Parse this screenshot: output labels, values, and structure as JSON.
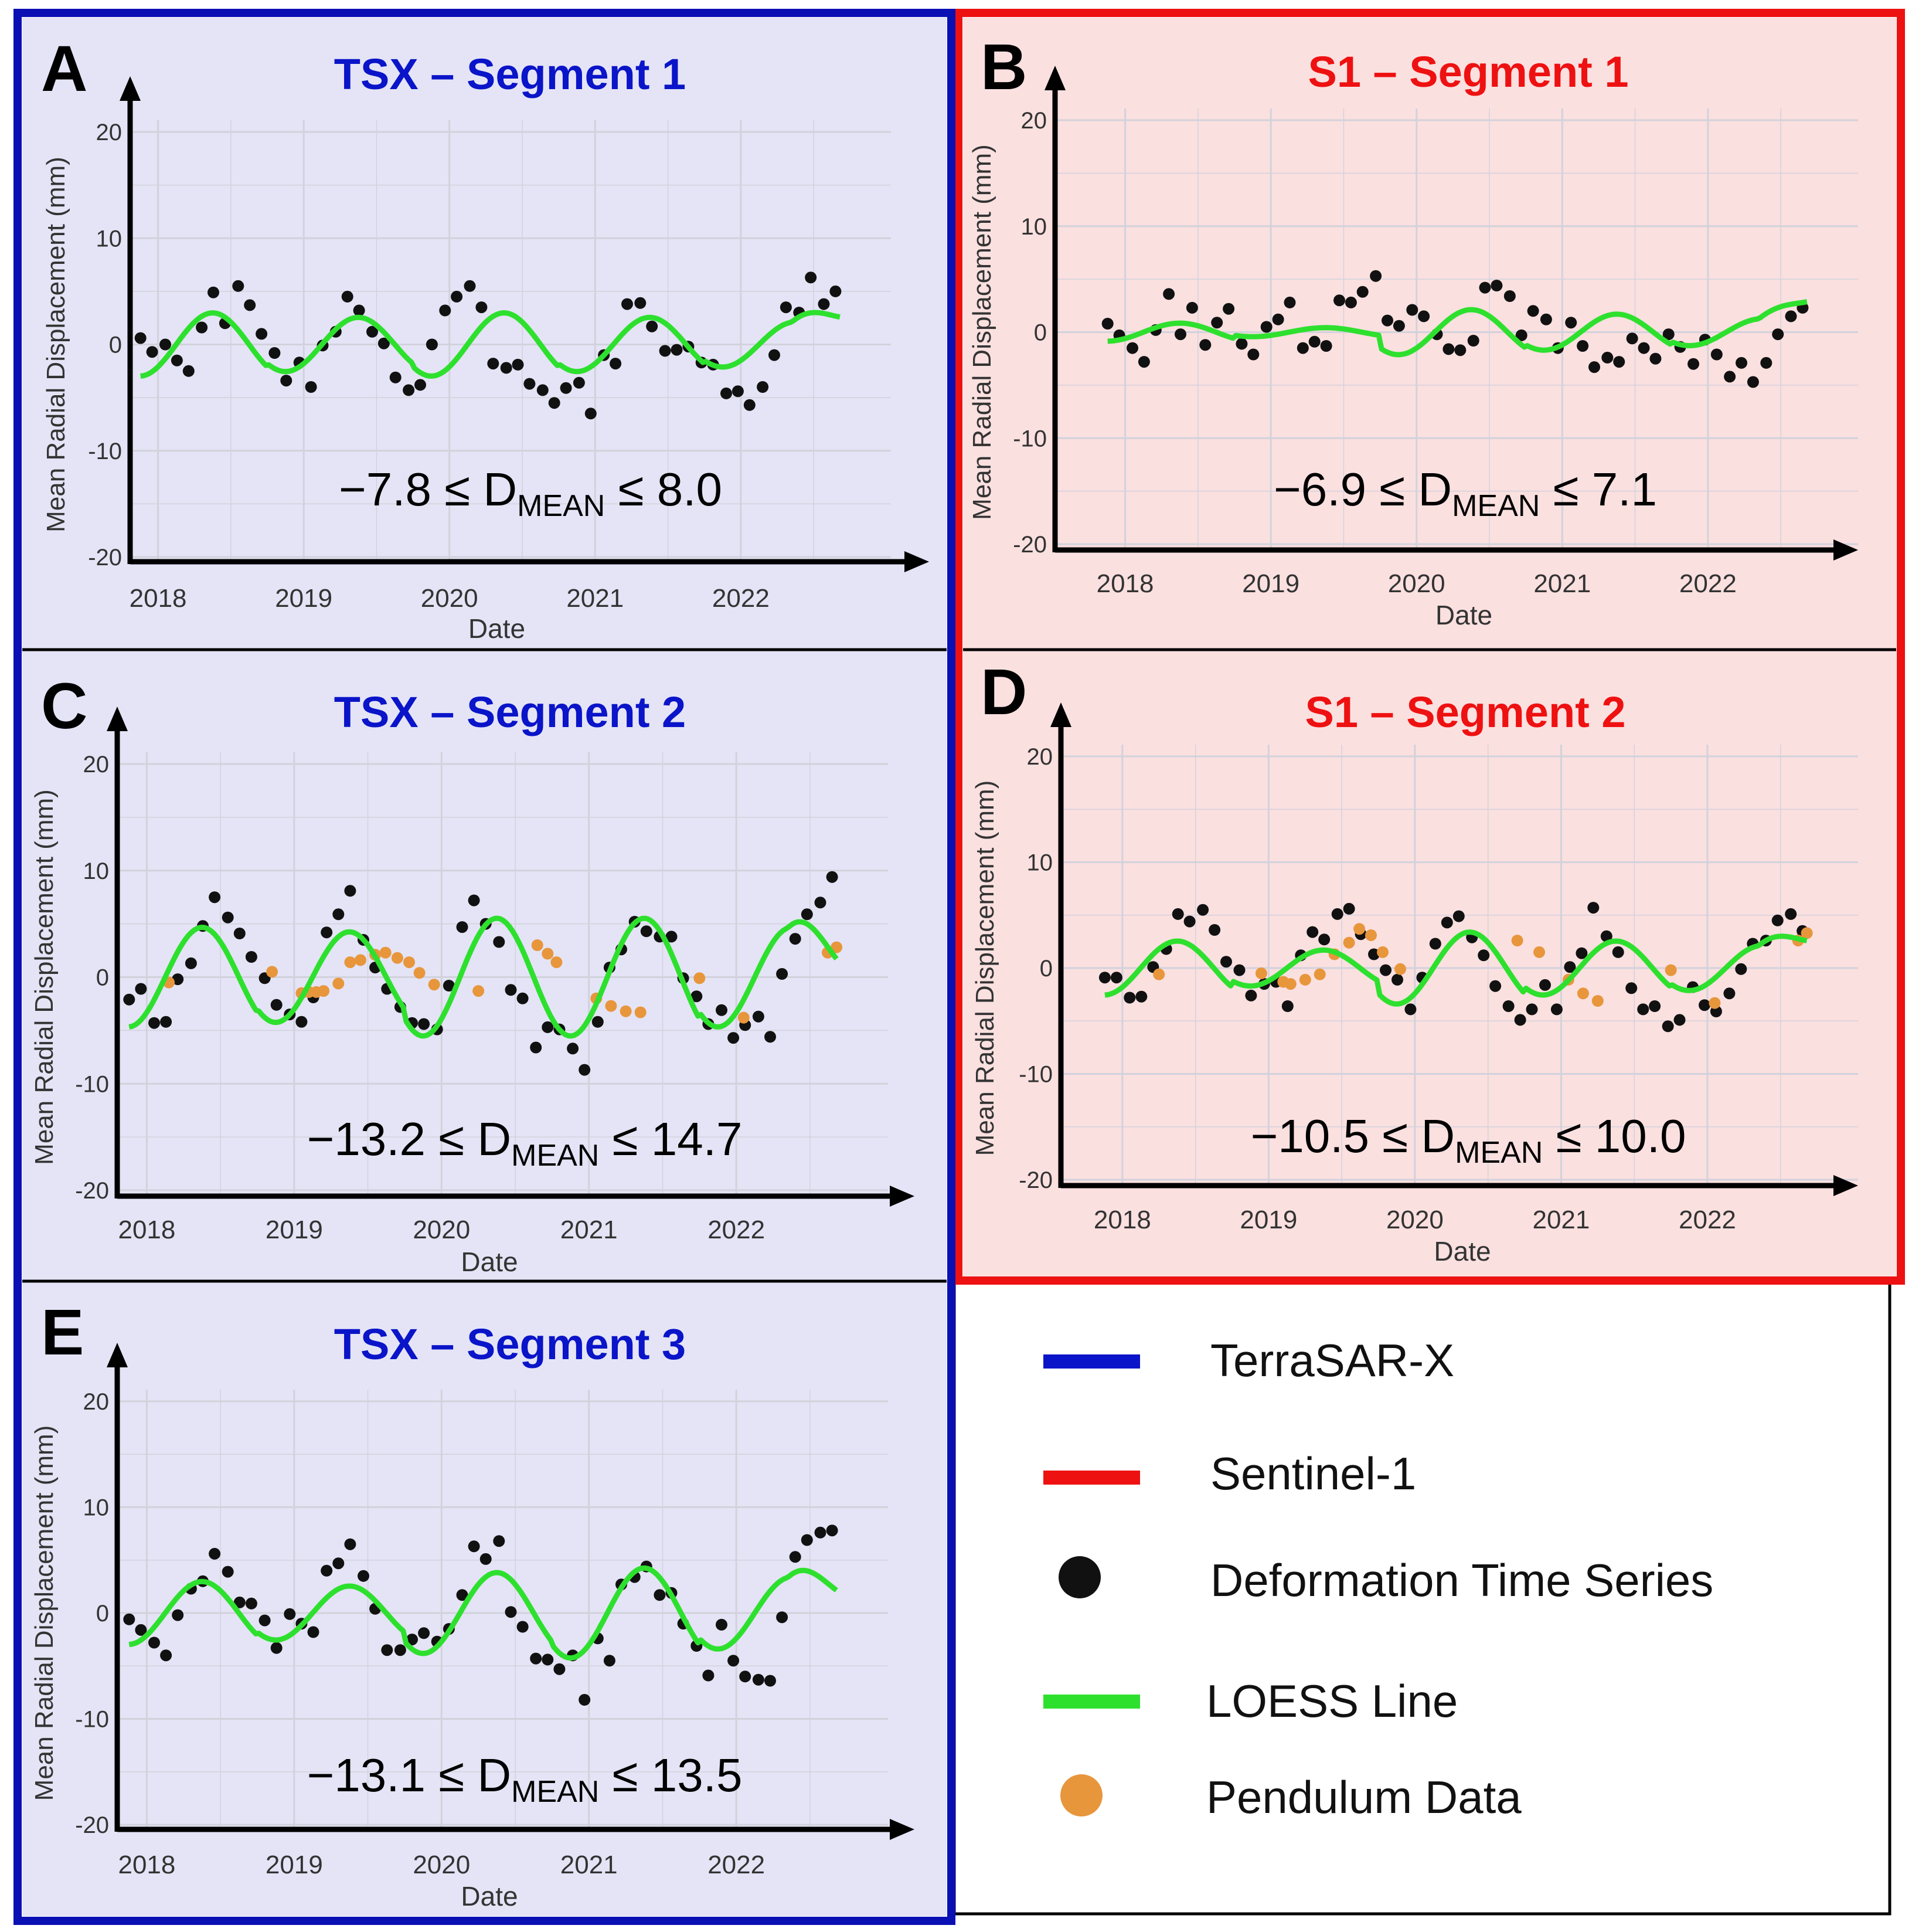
{
  "colors": {
    "tsx_border": "#0a10b4",
    "s1_border": "#ee1111",
    "tsx_bg": "#e4e4f6",
    "s1_bg": "#fbe0e0",
    "tsx_title": "#0a14c8",
    "s1_title": "#ee1111",
    "deformation": "#111111",
    "loess": "#2ee02e",
    "pendulum": "#e8963c",
    "grid": "#d2d2dc"
  },
  "legend": {
    "items": [
      {
        "label": "TerraSAR-X",
        "icon": "blue-line-icon"
      },
      {
        "label": "Sentinel-1",
        "icon": "red-line-icon"
      },
      {
        "label": "Deformation Time Series",
        "icon": "black-dot-icon"
      },
      {
        "label": "LOESS Line",
        "icon": "green-line-icon"
      },
      {
        "label": "Pendulum Data",
        "icon": "orange-dot-icon"
      }
    ]
  },
  "chart_data": [
    {
      "panel_letter": "A",
      "type": "scatter",
      "title": "TSX – Segment 1",
      "xlabel": "Date",
      "ylabel": "Mean Radial Displacement (mm)",
      "xlim": [
        2017.7,
        2022.95
      ],
      "ylim": [
        -20,
        20
      ],
      "x_ticks": [
        "2018",
        "2019",
        "2020",
        "2021",
        "2022"
      ],
      "y_ticks": [
        "20",
        "10",
        "0",
        "-10",
        "-20"
      ],
      "annotation": {
        "pre": "−7.8 ≤ D",
        "sub": "MEAN",
        "post": "≤ 8.0"
      },
      "loess_amplitudes": [
        3.5,
        3,
        3.5,
        3,
        2.5,
        3
      ],
      "series_deformation": {
        "x": [
          2017.88,
          2017.96,
          2018.05,
          2018.13,
          2018.21,
          2018.3,
          2018.38,
          2018.46,
          2018.55,
          2018.63,
          2018.71,
          2018.8,
          2018.88,
          2018.97,
          2019.05,
          2019.13,
          2019.22,
          2019.3,
          2019.38,
          2019.47,
          2019.55,
          2019.63,
          2019.72,
          2019.8,
          2019.88,
          2019.97,
          2020.05,
          2020.14,
          2020.22,
          2020.3,
          2020.39,
          2020.47,
          2020.55,
          2020.64,
          2020.72,
          2020.8,
          2020.89,
          2020.97,
          2021.06,
          2021.14,
          2021.22,
          2021.31,
          2021.39,
          2021.48,
          2021.56,
          2021.64,
          2021.73,
          2021.81,
          2021.9,
          2021.98,
          2022.06,
          2022.15,
          2022.23,
          2022.31,
          2022.4,
          2022.48,
          2022.57,
          2022.65
        ],
        "y": [
          0.6,
          -0.7,
          0,
          -1.5,
          -2.5,
          1.6,
          4.9,
          2,
          5.5,
          3.7,
          1,
          -0.8,
          -3.4,
          -1.7,
          -4,
          -0.1,
          1.2,
          4.5,
          3.2,
          1.2,
          0.1,
          -3.1,
          -4.3,
          -3.8,
          0,
          3.2,
          4.5,
          5.5,
          3.5,
          -1.8,
          -2.2,
          -1.9,
          -3.7,
          -4.3,
          -5.5,
          -4.1,
          -3.6,
          -6.5,
          -1,
          -1.8,
          3.8,
          3.9,
          1.7,
          -0.6,
          -0.5,
          -0.2,
          -1.7,
          -1.9,
          -4.6,
          -4.4,
          -5.7,
          -4,
          -1,
          3.5,
          3,
          6.3,
          3.8,
          5
        ]
      },
      "series_pendulum": null
    },
    {
      "panel_letter": "B",
      "type": "scatter",
      "title": "S1 – Segment 1",
      "xlabel": "Date",
      "ylabel": "Mean Radial Displacement (mm)",
      "xlim": [
        2017.7,
        2022.95
      ],
      "ylim": [
        -20,
        20
      ],
      "x_ticks": [
        "2018",
        "2019",
        "2020",
        "2021",
        "2022"
      ],
      "y_ticks": [
        "20",
        "10",
        "0",
        "-10",
        "-20"
      ],
      "annotation": {
        "pre": "−6.9 ≤ D",
        "sub": "MEAN",
        "post": "≤ 7.1"
      },
      "loess_amplitudes": [
        1,
        0.5,
        2.5,
        2,
        1.5,
        2
      ],
      "series_deformation": {
        "x": [
          2017.88,
          2017.96,
          2018.05,
          2018.13,
          2018.21,
          2018.3,
          2018.38,
          2018.46,
          2018.55,
          2018.63,
          2018.71,
          2018.8,
          2018.88,
          2018.97,
          2019.05,
          2019.13,
          2019.22,
          2019.3,
          2019.38,
          2019.47,
          2019.55,
          2019.63,
          2019.72,
          2019.8,
          2019.88,
          2019.97,
          2020.05,
          2020.14,
          2020.22,
          2020.3,
          2020.39,
          2020.47,
          2020.55,
          2020.64,
          2020.72,
          2020.8,
          2020.89,
          2020.97,
          2021.06,
          2021.14,
          2021.22,
          2021.31,
          2021.39,
          2021.48,
          2021.56,
          2021.64,
          2021.73,
          2021.81,
          2021.9,
          2021.98,
          2022.06,
          2022.15,
          2022.23,
          2022.31,
          2022.4,
          2022.48,
          2022.57,
          2022.65
        ],
        "y": [
          0.8,
          -0.3,
          -1.5,
          -2.8,
          0.2,
          3.6,
          -0.2,
          2.3,
          -1.2,
          0.9,
          2.2,
          -1.1,
          -2.1,
          0.5,
          1.2,
          2.8,
          -1.5,
          -0.9,
          -1.3,
          3,
          2.8,
          3.8,
          5.3,
          1.1,
          0.6,
          2.1,
          1.5,
          -0.2,
          -1.6,
          -1.7,
          -0.8,
          4.2,
          4.4,
          3.4,
          -0.3,
          2,
          1.2,
          -1.5,
          0.9,
          -1.3,
          -3.3,
          -2.4,
          -2.8,
          -0.6,
          -1.5,
          -2.5,
          -0.2,
          -1.4,
          -3,
          -0.7,
          -2.1,
          -4.2,
          -2.9,
          -4.7,
          -2.9,
          -0.2,
          1.5,
          2.3
        ]
      },
      "series_pendulum": null
    },
    {
      "panel_letter": "C",
      "type": "scatter",
      "title": "TSX – Segment 2",
      "xlabel": "Date",
      "ylabel": "Mean Radial Displacement (mm)",
      "xlim": [
        2017.7,
        2022.95
      ],
      "ylim": [
        -20,
        20
      ],
      "x_ticks": [
        "2018",
        "2019",
        "2020",
        "2021",
        "2022"
      ],
      "y_ticks": [
        "20",
        "10",
        "0",
        "-10",
        "-20"
      ],
      "annotation": {
        "pre": "−13.2 ≤ D",
        "sub": "MEAN",
        "post": "≤ 14.7"
      },
      "loess_amplitudes": [
        5.5,
        5,
        6.5,
        6.5,
        5.5,
        7
      ],
      "series_deformation": {
        "x": [
          2017.88,
          2017.96,
          2018.05,
          2018.13,
          2018.21,
          2018.3,
          2018.38,
          2018.46,
          2018.55,
          2018.63,
          2018.71,
          2018.8,
          2018.88,
          2018.97,
          2019.05,
          2019.13,
          2019.22,
          2019.3,
          2019.38,
          2019.47,
          2019.55,
          2019.63,
          2019.72,
          2019.8,
          2019.88,
          2019.97,
          2020.05,
          2020.14,
          2020.22,
          2020.3,
          2020.39,
          2020.47,
          2020.55,
          2020.64,
          2020.72,
          2020.8,
          2020.89,
          2020.97,
          2021.06,
          2021.14,
          2021.22,
          2021.31,
          2021.39,
          2021.48,
          2021.56,
          2021.64,
          2021.73,
          2021.81,
          2021.9,
          2021.98,
          2022.06,
          2022.15,
          2022.23,
          2022.31,
          2022.4,
          2022.48,
          2022.57,
          2022.65
        ],
        "y": [
          -2.1,
          -1.1,
          -4.3,
          -4.2,
          -0.2,
          1.3,
          4.8,
          7.5,
          5.6,
          4.1,
          1.9,
          -0.1,
          -2.6,
          -3.5,
          -4.2,
          -1.9,
          4.2,
          5.9,
          8.1,
          3.5,
          0.9,
          -1.1,
          -2.8,
          -4.3,
          -4.4,
          -4.9,
          -0.8,
          4.7,
          7.2,
          5,
          3.3,
          -1.2,
          -2,
          -6.6,
          -4.7,
          -4.9,
          -6.7,
          -8.7,
          -4.2,
          0.9,
          2.6,
          5.2,
          4.3,
          3.8,
          3.8,
          -0.1,
          -1.8,
          -4.4,
          -3.1,
          -5.7,
          -4.5,
          -3.7,
          -5.6,
          0.3,
          3.6,
          5.9,
          7,
          9.4
        ]
      },
      "series_pendulum": {
        "x": [
          2018.15,
          2018.85,
          2019.05,
          2019.1,
          2019.15,
          2019.2,
          2019.3,
          2019.38,
          2019.45,
          2019.55,
          2019.62,
          2019.7,
          2019.78,
          2019.85,
          2019.95,
          2020.25,
          2020.65,
          2020.72,
          2020.78,
          2021.05,
          2021.15,
          2021.25,
          2021.35,
          2021.75,
          2022.05,
          2022.62,
          2022.68
        ],
        "y": [
          -0.5,
          0.5,
          -1.5,
          -1.4,
          -1.4,
          -1.3,
          -0.6,
          1.4,
          1.6,
          2.1,
          2.3,
          1.8,
          1.4,
          0.4,
          -0.7,
          -1.3,
          3,
          2.2,
          1.4,
          -2,
          -2.7,
          -3.2,
          -3.3,
          -0.1,
          -3.8,
          2.3,
          2.8
        ]
      }
    },
    {
      "panel_letter": "D",
      "type": "scatter",
      "title": "S1 – Segment 2",
      "xlabel": "Date",
      "ylabel": "Mean Radial Displacement (mm)",
      "xlim": [
        2017.7,
        2022.95
      ],
      "ylim": [
        -20,
        20
      ],
      "x_ticks": [
        "2018",
        "2019",
        "2020",
        "2021",
        "2022"
      ],
      "y_ticks": [
        "20",
        "10",
        "0",
        "-10",
        "-20"
      ],
      "annotation": {
        "pre": "−10.5 ≤ D",
        "sub": "MEAN",
        "post": "≤ 10.0"
      },
      "loess_amplitudes": [
        3,
        2,
        4,
        3,
        2.5,
        3
      ],
      "series_deformation": {
        "x": [
          2017.88,
          2017.96,
          2018.05,
          2018.13,
          2018.21,
          2018.3,
          2018.38,
          2018.46,
          2018.55,
          2018.63,
          2018.71,
          2018.8,
          2018.88,
          2018.97,
          2019.05,
          2019.13,
          2019.22,
          2019.3,
          2019.38,
          2019.47,
          2019.55,
          2019.63,
          2019.72,
          2019.8,
          2019.88,
          2019.97,
          2020.05,
          2020.14,
          2020.22,
          2020.3,
          2020.39,
          2020.47,
          2020.55,
          2020.64,
          2020.72,
          2020.8,
          2020.89,
          2020.97,
          2021.06,
          2021.14,
          2021.22,
          2021.31,
          2021.39,
          2021.48,
          2021.56,
          2021.64,
          2021.73,
          2021.81,
          2021.9,
          2021.98,
          2022.06,
          2022.15,
          2022.23,
          2022.31,
          2022.4,
          2022.48,
          2022.57,
          2022.65
        ],
        "y": [
          -0.9,
          -0.9,
          -2.8,
          -2.7,
          0.1,
          1.8,
          5.1,
          4.4,
          5.5,
          3.6,
          0.6,
          -0.2,
          -2.6,
          -1.5,
          -1.3,
          -3.6,
          1.2,
          3.4,
          2.7,
          5.1,
          5.6,
          3.2,
          1.3,
          -0.2,
          -1.1,
          -3.9,
          -0.9,
          2.3,
          4.3,
          4.9,
          2.9,
          1.2,
          -1.7,
          -3.6,
          -4.9,
          -3.9,
          -1.6,
          -3.9,
          0.1,
          1.4,
          5.7,
          3,
          1.5,
          -1.9,
          -3.9,
          -3.6,
          -5.5,
          -4.9,
          -1.8,
          -3.5,
          -4.1,
          -2.4,
          -0.1,
          2.3,
          2.6,
          4.5,
          5.1,
          3.5
        ]
      },
      "series_pendulum": {
        "x": [
          2018.25,
          2018.95,
          2019.1,
          2019.15,
          2019.25,
          2019.35,
          2019.45,
          2019.55,
          2019.62,
          2019.7,
          2019.78,
          2019.9,
          2020.7,
          2020.85,
          2021.05,
          2021.15,
          2021.25,
          2021.75,
          2022.05,
          2022.62,
          2022.68
        ],
        "y": [
          -0.6,
          -0.5,
          -1.3,
          -1.5,
          -1.1,
          -0.6,
          1.3,
          2.4,
          3.7,
          3.1,
          1.5,
          -0.1,
          2.6,
          1.5,
          -1.1,
          -2.4,
          -3.1,
          -0.2,
          -3.3,
          2.6,
          3.3
        ]
      }
    },
    {
      "panel_letter": "E",
      "type": "scatter",
      "title": "TSX – Segment 3",
      "xlabel": "Date",
      "ylabel": "Mean Radial Displacement (mm)",
      "xlim": [
        2017.7,
        2022.95
      ],
      "ylim": [
        -20,
        20
      ],
      "x_ticks": [
        "2018",
        "2019",
        "2020",
        "2021",
        "2022"
      ],
      "y_ticks": [
        "20",
        "10",
        "0",
        "-10",
        "-20"
      ],
      "annotation": {
        "pre": "−13.1 ≤ D",
        "sub": "MEAN",
        "post": "≤ 13.5"
      },
      "loess_amplitudes": [
        3.5,
        3,
        4.5,
        5,
        4,
        6
      ],
      "series_deformation": {
        "x": [
          2017.88,
          2017.96,
          2018.05,
          2018.13,
          2018.21,
          2018.3,
          2018.38,
          2018.46,
          2018.55,
          2018.63,
          2018.71,
          2018.8,
          2018.88,
          2018.97,
          2019.05,
          2019.13,
          2019.22,
          2019.3,
          2019.38,
          2019.47,
          2019.55,
          2019.63,
          2019.72,
          2019.8,
          2019.88,
          2019.97,
          2020.05,
          2020.14,
          2020.22,
          2020.3,
          2020.39,
          2020.47,
          2020.55,
          2020.64,
          2020.72,
          2020.8,
          2020.89,
          2020.97,
          2021.06,
          2021.14,
          2021.22,
          2021.31,
          2021.39,
          2021.48,
          2021.56,
          2021.64,
          2021.73,
          2021.81,
          2021.9,
          2021.98,
          2022.06,
          2022.15,
          2022.23,
          2022.31,
          2022.4,
          2022.48,
          2022.57,
          2022.65
        ],
        "y": [
          -0.6,
          -1.6,
          -2.8,
          -4,
          -0.2,
          2.3,
          3,
          5.6,
          3.9,
          1,
          0.9,
          -0.7,
          -3.3,
          -0.1,
          -1,
          -1.8,
          4,
          4.7,
          6.5,
          3.5,
          0.4,
          -3.5,
          -3.5,
          -2.5,
          -1.9,
          -2.7,
          -1.5,
          1.7,
          6.3,
          5.1,
          6.8,
          0.1,
          -1.3,
          -4.3,
          -4.4,
          -5.3,
          -4,
          -8.2,
          -2.4,
          -4.5,
          2.7,
          3.4,
          4.4,
          1.7,
          1.9,
          -1,
          -3.1,
          -5.9,
          -1.1,
          -4.5,
          -6,
          -6.3,
          -6.4,
          -0.4,
          5.3,
          6.9,
          7.6,
          7.8
        ]
      },
      "series_pendulum": null
    }
  ]
}
